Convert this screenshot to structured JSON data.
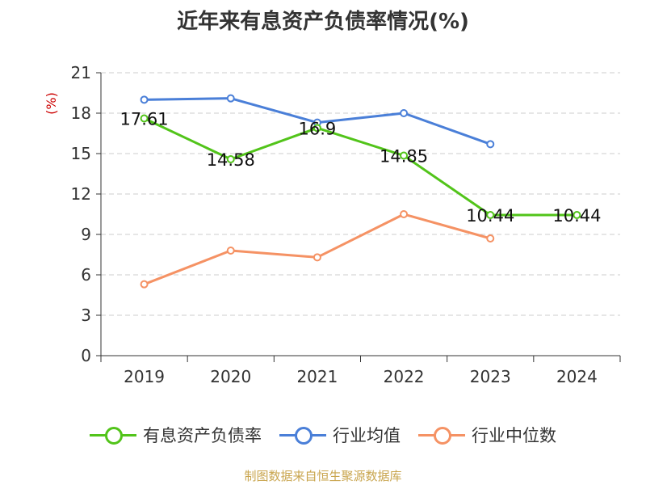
{
  "chart_data": {
    "type": "line",
    "title": "近年来有息资产负债率情况(%)",
    "ylabel": "(%)",
    "xlabel": "",
    "categories": [
      "2019",
      "2020",
      "2021",
      "2022",
      "2023",
      "2024"
    ],
    "ylim": [
      0,
      21
    ],
    "yticks": [
      "0",
      "3",
      "6",
      "9",
      "12",
      "15",
      "18",
      "21"
    ],
    "grid": true,
    "legend_position": "bottom",
    "series": [
      {
        "name": "有息资产负债率",
        "color": "#52c41a",
        "values": [
          17.61,
          14.58,
          16.9,
          14.85,
          10.44,
          10.44
        ],
        "labels": [
          "17.61",
          "14.58",
          "16.9",
          "14.85",
          "10.44",
          "10.44"
        ]
      },
      {
        "name": "行业均值",
        "color": "#4a7fd8",
        "values": [
          19.0,
          19.1,
          17.3,
          18.0,
          15.7,
          null
        ]
      },
      {
        "name": "行业中位数",
        "color": "#f59264",
        "values": [
          5.3,
          7.8,
          7.3,
          10.5,
          8.7,
          null
        ]
      }
    ]
  },
  "legend": {
    "items": [
      {
        "label": "有息资产负债率",
        "color": "#52c41a"
      },
      {
        "label": "行业均值",
        "color": "#4a7fd8"
      },
      {
        "label": "行业中位数",
        "color": "#f59264"
      }
    ]
  },
  "source_note": "制图数据来自恒生聚源数据库"
}
